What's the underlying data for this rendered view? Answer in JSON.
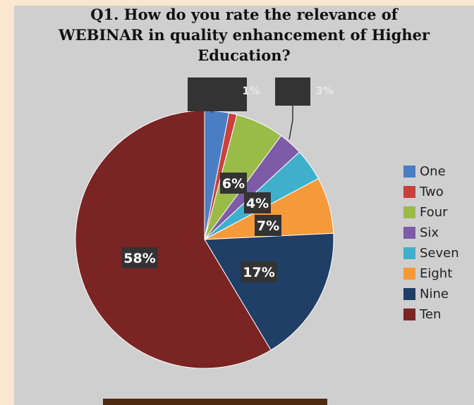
{
  "chart_data": {
    "type": "pie",
    "title_lines": [
      "Q1. How do you rate the relevance of",
      "WEBINAR in quality enhancement of Higher",
      "Education?"
    ],
    "categories": [
      "One",
      "Two",
      "Four",
      "Six",
      "Seven",
      "Eight",
      "Nine",
      "Ten"
    ],
    "values": [
      3,
      1,
      6,
      3,
      4,
      7,
      17,
      58
    ],
    "labels": [
      "",
      "1%",
      "6%",
      "3%",
      "4%",
      "7%",
      "17%",
      "58%"
    ],
    "colors": [
      "#4a7ec4",
      "#c9403c",
      "#99bb48",
      "#7d5ba6",
      "#3fb0cc",
      "#f59a3a",
      "#1f3f66",
      "#7b2424"
    ],
    "legend_position": "right"
  }
}
